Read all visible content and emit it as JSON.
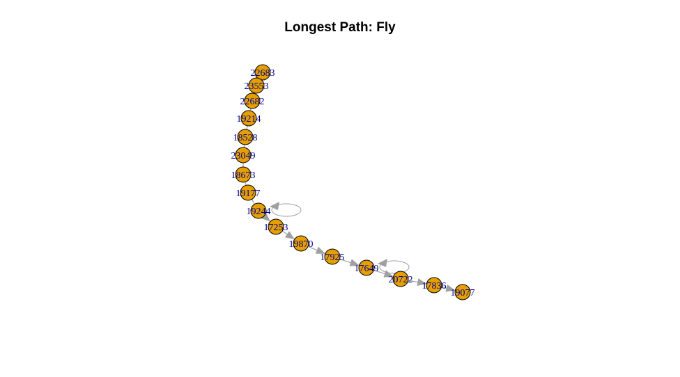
{
  "title": "Longest Path: Fly",
  "colors": {
    "node_fill": "#e69f00",
    "node_stroke": "#000000",
    "label": "#00008b",
    "edge": "#a0a0a0"
  },
  "nodes": [
    {
      "id": "22683"
    },
    {
      "id": "23553"
    },
    {
      "id": "22682"
    },
    {
      "id": "19214"
    },
    {
      "id": "18528"
    },
    {
      "id": "23049"
    },
    {
      "id": "18673"
    },
    {
      "id": "19177"
    },
    {
      "id": "19244",
      "self_loop": true
    },
    {
      "id": "17253"
    },
    {
      "id": "19870"
    },
    {
      "id": "17925"
    },
    {
      "id": "17649",
      "self_loop": true
    },
    {
      "id": "20722"
    },
    {
      "id": "17836"
    },
    {
      "id": "19077"
    }
  ],
  "edges": [
    {
      "from": "22683",
      "to": "23553",
      "arrow": false
    },
    {
      "from": "23553",
      "to": "22682",
      "arrow": false
    },
    {
      "from": "22682",
      "to": "19214",
      "arrow": false
    },
    {
      "from": "19214",
      "to": "18528",
      "arrow": false
    },
    {
      "from": "18528",
      "to": "23049",
      "arrow": false
    },
    {
      "from": "23049",
      "to": "18673",
      "arrow": false
    },
    {
      "from": "18673",
      "to": "19177",
      "arrow": false
    },
    {
      "from": "19177",
      "to": "19244",
      "arrow": false
    },
    {
      "from": "19244",
      "to": "17253",
      "arrow": true
    },
    {
      "from": "17253",
      "to": "19870",
      "arrow": true
    },
    {
      "from": "19870",
      "to": "17925",
      "arrow": true
    },
    {
      "from": "17925",
      "to": "17649",
      "arrow": true
    },
    {
      "from": "17649",
      "to": "20722",
      "arrow": true
    },
    {
      "from": "20722",
      "to": "17836",
      "arrow": true
    },
    {
      "from": "17836",
      "to": "19077",
      "arrow": true
    }
  ]
}
